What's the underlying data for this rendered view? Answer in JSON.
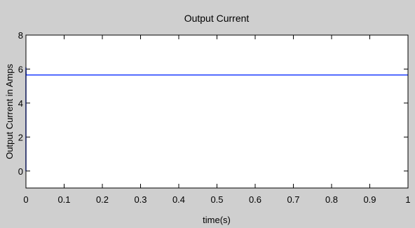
{
  "chart_data": {
    "type": "line",
    "title": "Output Current",
    "xlabel": "time(s)",
    "ylabel": "Output Current in Amps",
    "xlim": [
      0,
      1
    ],
    "ylim": [
      -1,
      8
    ],
    "xticks": [
      0,
      0.1,
      0.2,
      0.3,
      0.4,
      0.5,
      0.6,
      0.7,
      0.8,
      0.9,
      1
    ],
    "xtick_labels": [
      "0",
      "0.1",
      "0.2",
      "0.3",
      "0.4",
      "0.5",
      "0.6",
      "0.7",
      "0.8",
      "0.9",
      "1"
    ],
    "yticks": [
      0,
      2,
      4,
      6,
      8
    ],
    "ytick_labels": [
      "0",
      "2",
      "4",
      "6",
      "8"
    ],
    "grid": false,
    "series": [
      {
        "color": "#1f3fff",
        "x": [
          0,
          0,
          0.0005,
          0.001,
          0.1,
          0.2,
          0.3,
          0.4,
          0.5,
          0.6,
          0.7,
          0.8,
          0.9,
          1
        ],
        "y": [
          0,
          6.1,
          5.75,
          5.65,
          5.65,
          5.65,
          5.65,
          5.65,
          5.65,
          5.65,
          5.65,
          5.65,
          5.65,
          5.65
        ]
      }
    ]
  }
}
